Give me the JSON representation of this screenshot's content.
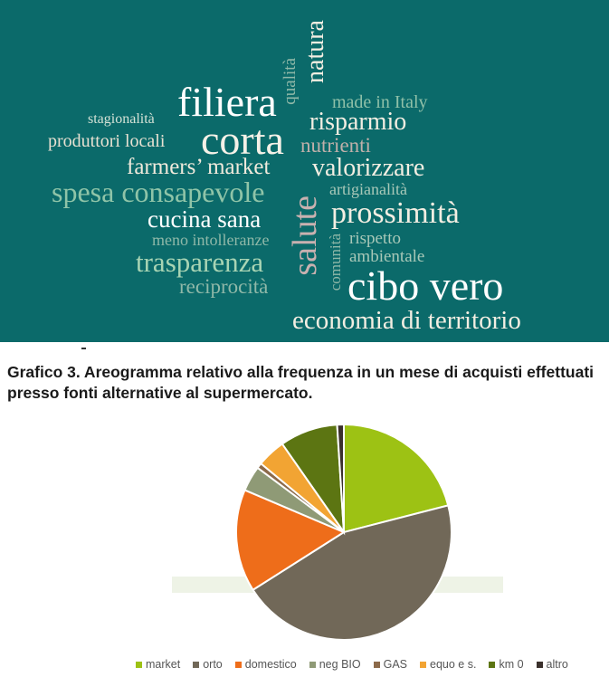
{
  "word_cloud": {
    "words": [
      {
        "id": "natura",
        "text": "natura",
        "color": "#f3eee2"
      },
      {
        "id": "qualita",
        "text": "qualità",
        "color": "#8fb8a8"
      },
      {
        "id": "filiera",
        "text": "filiera",
        "color": "#ffffff"
      },
      {
        "id": "made",
        "text": "made in Italy",
        "color": "#8fc0a8"
      },
      {
        "id": "stag",
        "text": "stagionalità",
        "color": "#d4e2d6"
      },
      {
        "id": "risp",
        "text": "risparmio",
        "color": "#f3eee2"
      },
      {
        "id": "prod",
        "text": "produttori locali",
        "color": "#e8e1d2"
      },
      {
        "id": "corta",
        "text": "corta",
        "color": "#f5f1e7"
      },
      {
        "id": "nutr",
        "text": "nutrienti",
        "color": "#c0b0aa"
      },
      {
        "id": "farm",
        "text": "farmers’ market",
        "color": "#f0eadc"
      },
      {
        "id": "valo",
        "text": "valorizzare",
        "color": "#f3eee2"
      },
      {
        "id": "spesa",
        "text": "spesa consapevole",
        "color": "#8fc4a8"
      },
      {
        "id": "artig",
        "text": "artigianalità",
        "color": "#a8c8b8"
      },
      {
        "id": "cucina",
        "text": "cucina sana",
        "color": "#ffffff"
      },
      {
        "id": "salute",
        "text": "salute",
        "color": "#c9b1b0"
      },
      {
        "id": "pross",
        "text": "prossimità",
        "color": "#f3eee2"
      },
      {
        "id": "meno",
        "text": "meno intolleranze",
        "color": "#8fb8a8"
      },
      {
        "id": "comun",
        "text": "comunità",
        "color": "#8fb8a8"
      },
      {
        "id": "rispetto",
        "text": "rispetto",
        "color": "#a8c8b8"
      },
      {
        "id": "trasp",
        "text": "trasparenza",
        "color": "#a8d4b4"
      },
      {
        "id": "amb",
        "text": "ambientale",
        "color": "#a8c8b8"
      },
      {
        "id": "recip",
        "text": "reciprocità",
        "color": "#8fb8a8"
      },
      {
        "id": "cibo",
        "text": "cibo vero",
        "color": "#ffffff"
      },
      {
        "id": "econ",
        "text": "economia di territorio",
        "color": "#f3eee2"
      }
    ]
  },
  "chart_data": {
    "type": "pie",
    "title": "Grafico 3. Areogramma relativo alla frequenza in un mese di acquisti effettuati presso fonti alternative al supermercato.",
    "categories": [
      "market",
      "orto",
      "domestico",
      "neg BIO",
      "GAS",
      "equo e s.",
      "km 0",
      "altro"
    ],
    "values": [
      21,
      45,
      15.4,
      3.8,
      0.8,
      4.3,
      8.7,
      1.0
    ],
    "colors": [
      "#9dc214",
      "#716858",
      "#ee6d1a",
      "#8f9a76",
      "#8c6a4a",
      "#f2a433",
      "#5c7512",
      "#3a302c"
    ],
    "start_angle": "top, clockwise",
    "legend_position": "bottom"
  }
}
